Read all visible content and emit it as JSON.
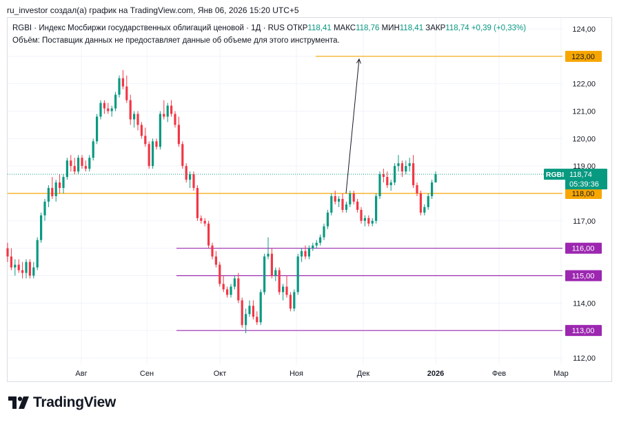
{
  "header": {
    "caption": "ru_investor создал(а) график на TradingView.com, Янв 06, 2026 15:20 UTC+5"
  },
  "legend": {
    "title": "RGBI · Индекс Мосбиржи государственных облигаций ценовой · 1Д · RUS",
    "open_label": "ОТКР",
    "open_value": "118,41",
    "high_label": "МАКС",
    "high_value": "118,76",
    "low_label": "МИН",
    "low_value": "118,41",
    "close_label": "ЗАКР",
    "close_value": "118,74",
    "change": "+0,39 (+0,33%)",
    "volume_note": "Объём: Поставщик данных не предоставляет данные об объеме для этого инструмента."
  },
  "brand": {
    "name": "TradingView",
    "icon": "tradingview-logo-icon"
  },
  "colors": {
    "up": "#089981",
    "down": "#f23645",
    "orange": "#f7a600",
    "purple": "#9c27b0",
    "grid": "#f0f3fa"
  },
  "chart_data": {
    "type": "candlestick",
    "symbol": "RGBI",
    "timeframe": "1D",
    "ylim": [
      112.0,
      124.0
    ],
    "y_ticks": [
      "112,00",
      "113,00",
      "114,00",
      "115,00",
      "116,00",
      "117,00",
      "118,00",
      "119,00",
      "120,00",
      "121,00",
      "122,00",
      "123,00",
      "124,00"
    ],
    "x_ticks": [
      "Авг",
      "Сен",
      "Окт",
      "Ноя",
      "Дек",
      "2026",
      "Фев",
      "Мар"
    ],
    "price_tag": {
      "symbol": "RGBI",
      "value": "118,74",
      "countdown": "05:39:36"
    },
    "hlines": [
      {
        "value": 123.0,
        "label": "123,00",
        "color": "orange",
        "from": "Дек-early"
      },
      {
        "value": 118.0,
        "label": "118,00",
        "color": "orange",
        "from": "start"
      },
      {
        "value": 116.0,
        "label": "116,00",
        "color": "purple",
        "from": "Сен-early"
      },
      {
        "value": 115.0,
        "label": "115,00",
        "color": "purple",
        "from": "Сен-early"
      },
      {
        "value": 113.0,
        "label": "113,00",
        "color": "purple",
        "from": "Сен-early"
      }
    ],
    "arrow": {
      "from_value": 118.0,
      "to_value": 122.9
    },
    "ohlc": [
      [
        116.0,
        116.2,
        115.5,
        115.7
      ],
      [
        115.7,
        116.0,
        115.2,
        115.3
      ],
      [
        115.3,
        115.6,
        115.0,
        115.4
      ],
      [
        115.4,
        115.6,
        115.1,
        115.2
      ],
      [
        115.2,
        115.5,
        114.9,
        115.1
      ],
      [
        115.1,
        115.6,
        114.9,
        115.5
      ],
      [
        115.5,
        115.6,
        114.9,
        115.0
      ],
      [
        115.0,
        115.5,
        114.9,
        115.3
      ],
      [
        115.3,
        116.4,
        115.2,
        116.3
      ],
      [
        116.3,
        117.3,
        116.2,
        117.2
      ],
      [
        117.2,
        117.8,
        117.0,
        117.7
      ],
      [
        117.7,
        118.3,
        117.5,
        118.2
      ],
      [
        118.2,
        118.6,
        117.8,
        117.9
      ],
      [
        117.9,
        118.5,
        117.7,
        118.4
      ],
      [
        118.4,
        118.7,
        118.0,
        118.2
      ],
      [
        118.2,
        118.7,
        118.0,
        118.6
      ],
      [
        118.6,
        119.3,
        118.5,
        119.2
      ],
      [
        119.2,
        119.4,
        118.8,
        119.0
      ],
      [
        119.0,
        119.3,
        118.7,
        118.8
      ],
      [
        118.8,
        119.4,
        118.7,
        119.3
      ],
      [
        119.3,
        119.4,
        118.9,
        119.0
      ],
      [
        119.0,
        119.2,
        118.8,
        118.9
      ],
      [
        118.9,
        119.4,
        118.8,
        119.3
      ],
      [
        119.3,
        120.0,
        119.2,
        119.9
      ],
      [
        119.9,
        120.9,
        119.8,
        120.8
      ],
      [
        120.8,
        121.4,
        120.7,
        121.3
      ],
      [
        121.3,
        121.4,
        120.9,
        121.1
      ],
      [
        121.1,
        121.3,
        120.9,
        121.0
      ],
      [
        121.0,
        121.2,
        120.8,
        121.1
      ],
      [
        121.1,
        121.7,
        121.0,
        121.6
      ],
      [
        121.6,
        122.3,
        121.5,
        122.2
      ],
      [
        122.2,
        122.5,
        121.8,
        121.9
      ],
      [
        121.9,
        122.3,
        121.3,
        121.4
      ],
      [
        121.4,
        121.6,
        120.5,
        120.7
      ],
      [
        120.7,
        121.0,
        120.4,
        120.9
      ],
      [
        120.9,
        121.0,
        120.3,
        120.5
      ],
      [
        120.5,
        120.6,
        120.0,
        120.1
      ],
      [
        120.1,
        120.4,
        119.7,
        119.8
      ],
      [
        119.8,
        119.9,
        118.9,
        119.0
      ],
      [
        119.0,
        120.0,
        118.9,
        119.9
      ],
      [
        119.9,
        120.0,
        119.6,
        119.7
      ],
      [
        119.7,
        121.0,
        119.6,
        120.9
      ],
      [
        120.9,
        121.4,
        120.7,
        120.8
      ],
      [
        120.8,
        121.3,
        120.6,
        121.2
      ],
      [
        121.2,
        121.4,
        120.8,
        120.9
      ],
      [
        120.9,
        121.0,
        120.4,
        120.5
      ],
      [
        120.5,
        120.8,
        119.7,
        119.8
      ],
      [
        119.8,
        119.9,
        118.9,
        119.0
      ],
      [
        119.0,
        119.1,
        118.4,
        118.5
      ],
      [
        118.5,
        118.8,
        118.2,
        118.7
      ],
      [
        118.7,
        118.8,
        118.1,
        118.2
      ],
      [
        118.2,
        118.3,
        117.0,
        117.1
      ],
      [
        117.1,
        117.2,
        116.9,
        117.0
      ],
      [
        117.0,
        117.1,
        116.8,
        116.9
      ],
      [
        116.9,
        117.0,
        116.0,
        116.1
      ],
      [
        116.1,
        116.2,
        115.6,
        115.7
      ],
      [
        115.7,
        115.9,
        115.3,
        115.4
      ],
      [
        115.4,
        115.5,
        114.6,
        114.7
      ],
      [
        114.7,
        115.0,
        114.4,
        114.5
      ],
      [
        114.5,
        114.6,
        114.2,
        114.3
      ],
      [
        114.3,
        114.7,
        114.2,
        114.6
      ],
      [
        114.6,
        115.0,
        114.5,
        114.9
      ],
      [
        114.9,
        115.1,
        114.0,
        114.1
      ],
      [
        114.1,
        114.2,
        113.1,
        113.2
      ],
      [
        113.2,
        113.8,
        112.9,
        113.6
      ],
      [
        113.6,
        114.1,
        113.5,
        113.9
      ],
      [
        113.9,
        114.1,
        113.4,
        113.5
      ],
      [
        113.5,
        113.7,
        113.2,
        113.3
      ],
      [
        113.3,
        114.5,
        113.2,
        114.4
      ],
      [
        114.4,
        115.8,
        114.3,
        115.7
      ],
      [
        115.7,
        116.4,
        115.6,
        115.8
      ],
      [
        115.8,
        116.0,
        114.9,
        115.0
      ],
      [
        115.0,
        115.3,
        114.8,
        115.2
      ],
      [
        115.2,
        115.3,
        114.3,
        114.4
      ],
      [
        114.4,
        114.7,
        114.1,
        114.6
      ],
      [
        114.6,
        115.0,
        114.2,
        114.3
      ],
      [
        114.3,
        114.4,
        113.7,
        113.8
      ],
      [
        113.8,
        114.5,
        113.7,
        114.4
      ],
      [
        114.4,
        115.8,
        114.3,
        115.7
      ],
      [
        115.7,
        116.0,
        115.5,
        115.9
      ],
      [
        115.9,
        116.1,
        115.6,
        115.7
      ],
      [
        115.7,
        116.1,
        115.6,
        116.0
      ],
      [
        116.0,
        116.2,
        115.9,
        116.1
      ],
      [
        116.1,
        116.3,
        116.0,
        116.2
      ],
      [
        116.2,
        116.5,
        116.1,
        116.4
      ],
      [
        116.4,
        116.9,
        116.3,
        116.8
      ],
      [
        116.8,
        117.4,
        116.7,
        117.3
      ],
      [
        117.3,
        118.0,
        117.2,
        117.9
      ],
      [
        117.9,
        118.1,
        117.6,
        117.7
      ],
      [
        117.7,
        117.9,
        117.5,
        117.8
      ],
      [
        117.8,
        118.0,
        117.3,
        117.4
      ],
      [
        117.4,
        117.7,
        117.3,
        117.6
      ],
      [
        117.6,
        118.1,
        117.5,
        118.0
      ],
      [
        118.0,
        118.1,
        117.6,
        117.7
      ],
      [
        117.7,
        117.8,
        117.3,
        117.4
      ],
      [
        117.4,
        117.5,
        116.9,
        117.0
      ],
      [
        117.0,
        117.2,
        116.8,
        117.1
      ],
      [
        117.1,
        117.2,
        116.8,
        116.9
      ],
      [
        116.9,
        117.1,
        116.8,
        117.0
      ],
      [
        117.0,
        118.0,
        116.9,
        117.9
      ],
      [
        117.9,
        118.8,
        117.8,
        118.7
      ],
      [
        118.7,
        118.9,
        118.4,
        118.6
      ],
      [
        118.6,
        118.8,
        118.2,
        118.3
      ],
      [
        118.3,
        118.5,
        118.1,
        118.4
      ],
      [
        118.4,
        119.1,
        118.3,
        119.0
      ],
      [
        119.0,
        119.4,
        118.8,
        119.1
      ],
      [
        119.1,
        119.2,
        118.6,
        118.8
      ],
      [
        118.8,
        119.2,
        118.7,
        119.0
      ],
      [
        119.0,
        119.3,
        118.8,
        119.1
      ],
      [
        119.1,
        119.4,
        118.2,
        118.3
      ],
      [
        118.3,
        118.4,
        117.9,
        118.0
      ],
      [
        118.0,
        118.1,
        117.2,
        117.3
      ],
      [
        117.3,
        117.6,
        117.2,
        117.5
      ],
      [
        117.5,
        118.0,
        117.4,
        117.9
      ],
      [
        117.9,
        118.5,
        117.8,
        118.4
      ],
      [
        118.4,
        118.8,
        118.4,
        118.7
      ]
    ]
  }
}
